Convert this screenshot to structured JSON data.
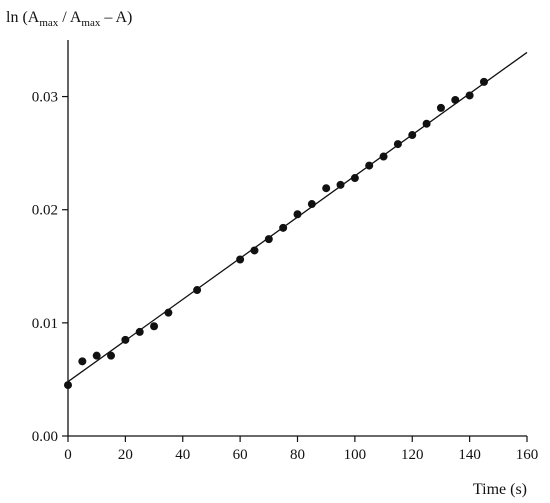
{
  "chart_data": {
    "type": "scatter",
    "title": "",
    "xlabel": "Time (s)",
    "ylabel": {
      "prefix": "ln (A",
      "sub1": "max",
      "middle": " / A",
      "sub2": "max",
      "suffix": " – A)"
    },
    "xlim": [
      0,
      160
    ],
    "ylim": [
      0,
      0.035
    ],
    "x_ticks": [
      0,
      20,
      40,
      60,
      80,
      100,
      120,
      140,
      160
    ],
    "x_tick_labels": [
      "0",
      "20",
      "40",
      "60",
      "80",
      "100",
      "120",
      "140",
      "160"
    ],
    "y_ticks": [
      0,
      0.01,
      0.02,
      0.03
    ],
    "y_tick_labels": [
      "0.00",
      "0.01",
      "0.02",
      "0.03"
    ],
    "grid": false,
    "series": [
      {
        "marker": "filled-circle",
        "color": "#111111",
        "points": [
          [
            0,
            0.0045
          ],
          [
            5,
            0.0066
          ],
          [
            10,
            0.0071
          ],
          [
            15,
            0.0071
          ],
          [
            20,
            0.0085
          ],
          [
            25,
            0.0092
          ],
          [
            30,
            0.0097
          ],
          [
            35,
            0.0109
          ],
          [
            45,
            0.0129
          ],
          [
            60,
            0.0156
          ],
          [
            65,
            0.0164
          ],
          [
            70,
            0.0174
          ],
          [
            75,
            0.0184
          ],
          [
            80,
            0.0196
          ],
          [
            85,
            0.0205
          ],
          [
            90,
            0.0219
          ],
          [
            95,
            0.0222
          ],
          [
            100,
            0.0228
          ],
          [
            105,
            0.0239
          ],
          [
            110,
            0.0247
          ],
          [
            115,
            0.0258
          ],
          [
            120,
            0.0266
          ],
          [
            125,
            0.0276
          ],
          [
            130,
            0.029
          ],
          [
            135,
            0.0297
          ],
          [
            140,
            0.0301
          ],
          [
            145,
            0.0313
          ]
        ]
      }
    ],
    "fit_line": {
      "x": [
        0,
        160
      ],
      "y": [
        0.0048,
        0.0339
      ],
      "color": "#111111"
    }
  }
}
